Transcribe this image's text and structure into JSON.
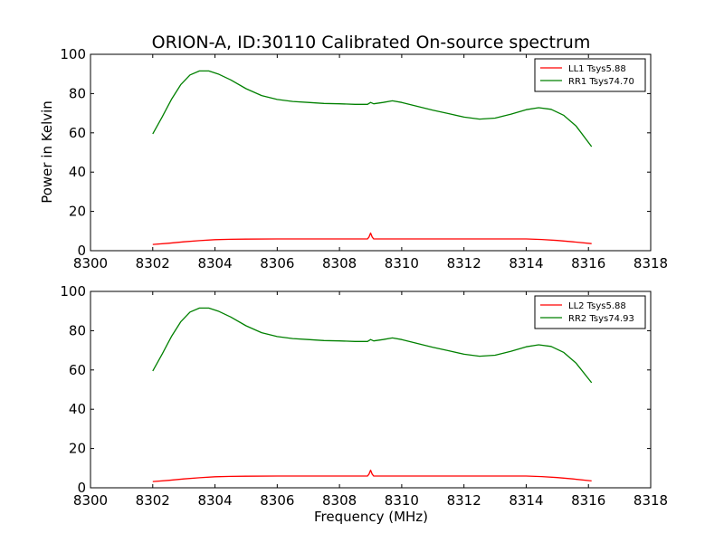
{
  "figure": {
    "title": "ORION-A, ID:30110 Calibrated On-source spectrum",
    "xlabel": "Frequency (MHz)",
    "ylabel": "Power in Kelvin"
  },
  "chart_data": [
    {
      "type": "line",
      "xlabel": "",
      "ylabel": "Power in Kelvin",
      "xlim": [
        8300,
        8318
      ],
      "ylim": [
        0,
        100
      ],
      "x_ticks": [
        8300,
        8302,
        8304,
        8306,
        8308,
        8310,
        8312,
        8314,
        8316,
        8318
      ],
      "y_ticks": [
        0,
        20,
        40,
        60,
        80,
        100
      ],
      "grid": false,
      "legend_position": "top-right",
      "series": [
        {
          "name": "LL1 Tsys5.88",
          "color": "#ff0000",
          "points": [
            [
              8302.0,
              3.2
            ],
            [
              8302.5,
              3.8
            ],
            [
              8303.0,
              4.5
            ],
            [
              8303.5,
              5.1
            ],
            [
              8304.0,
              5.6
            ],
            [
              8304.5,
              5.8
            ],
            [
              8305.0,
              5.9
            ],
            [
              8306.0,
              6.0
            ],
            [
              8307.0,
              6.0
            ],
            [
              8308.0,
              6.0
            ],
            [
              8308.9,
              6.0
            ],
            [
              8308.95,
              7.0
            ],
            [
              8309.0,
              9.0
            ],
            [
              8309.05,
              7.0
            ],
            [
              8309.1,
              6.0
            ],
            [
              8310.0,
              6.0
            ],
            [
              8311.0,
              6.0
            ],
            [
              8312.0,
              6.0
            ],
            [
              8313.0,
              6.0
            ],
            [
              8314.0,
              6.0
            ],
            [
              8314.5,
              5.7
            ],
            [
              8315.0,
              5.2
            ],
            [
              8315.5,
              4.5
            ],
            [
              8316.1,
              3.6
            ]
          ]
        },
        {
          "name": "RR1 Tsys74.70",
          "color": "#008000",
          "points": [
            [
              8302.0,
              59.5
            ],
            [
              8302.3,
              68.0
            ],
            [
              8302.6,
              77.0
            ],
            [
              8302.9,
              84.5
            ],
            [
              8303.2,
              89.5
            ],
            [
              8303.5,
              91.5
            ],
            [
              8303.8,
              91.5
            ],
            [
              8304.1,
              90.0
            ],
            [
              8304.5,
              87.0
            ],
            [
              8305.0,
              82.5
            ],
            [
              8305.5,
              79.0
            ],
            [
              8306.0,
              77.0
            ],
            [
              8306.5,
              76.0
            ],
            [
              8307.0,
              75.5
            ],
            [
              8307.5,
              75.0
            ],
            [
              8308.0,
              74.8
            ],
            [
              8308.5,
              74.5
            ],
            [
              8308.9,
              74.5
            ],
            [
              8309.0,
              75.5
            ],
            [
              8309.1,
              74.8
            ],
            [
              8309.4,
              75.5
            ],
            [
              8309.7,
              76.3
            ],
            [
              8310.0,
              75.5
            ],
            [
              8310.5,
              73.5
            ],
            [
              8311.0,
              71.5
            ],
            [
              8311.5,
              69.8
            ],
            [
              8312.0,
              68.0
            ],
            [
              8312.5,
              67.0
            ],
            [
              8313.0,
              67.5
            ],
            [
              8313.5,
              69.5
            ],
            [
              8314.0,
              71.8
            ],
            [
              8314.4,
              72.8
            ],
            [
              8314.8,
              72.0
            ],
            [
              8315.2,
              69.0
            ],
            [
              8315.6,
              63.5
            ],
            [
              8316.1,
              53.0
            ]
          ]
        }
      ]
    },
    {
      "type": "line",
      "xlabel": "Frequency (MHz)",
      "ylabel": "",
      "xlim": [
        8300,
        8318
      ],
      "ylim": [
        0,
        100
      ],
      "x_ticks": [
        8300,
        8302,
        8304,
        8306,
        8308,
        8310,
        8312,
        8314,
        8316,
        8318
      ],
      "y_ticks": [
        0,
        20,
        40,
        60,
        80,
        100
      ],
      "grid": false,
      "legend_position": "top-right",
      "series": [
        {
          "name": "LL2 Tsys5.88",
          "color": "#ff0000",
          "points": [
            [
              8302.0,
              3.2
            ],
            [
              8302.5,
              3.8
            ],
            [
              8303.0,
              4.5
            ],
            [
              8303.5,
              5.1
            ],
            [
              8304.0,
              5.6
            ],
            [
              8304.5,
              5.8
            ],
            [
              8305.0,
              5.9
            ],
            [
              8306.0,
              6.0
            ],
            [
              8307.0,
              6.0
            ],
            [
              8308.0,
              6.0
            ],
            [
              8308.9,
              6.0
            ],
            [
              8308.95,
              7.0
            ],
            [
              8309.0,
              9.0
            ],
            [
              8309.05,
              7.0
            ],
            [
              8309.1,
              6.0
            ],
            [
              8310.0,
              6.0
            ],
            [
              8311.0,
              6.0
            ],
            [
              8312.0,
              6.0
            ],
            [
              8313.0,
              6.0
            ],
            [
              8314.0,
              6.0
            ],
            [
              8314.5,
              5.7
            ],
            [
              8315.0,
              5.2
            ],
            [
              8315.5,
              4.5
            ],
            [
              8316.1,
              3.5
            ]
          ]
        },
        {
          "name": "RR2 Tsys74.93",
          "color": "#008000",
          "points": [
            [
              8302.0,
              59.5
            ],
            [
              8302.3,
              68.0
            ],
            [
              8302.6,
              77.0
            ],
            [
              8302.9,
              84.5
            ],
            [
              8303.2,
              89.5
            ],
            [
              8303.5,
              91.5
            ],
            [
              8303.8,
              91.5
            ],
            [
              8304.1,
              90.0
            ],
            [
              8304.5,
              87.0
            ],
            [
              8305.0,
              82.5
            ],
            [
              8305.5,
              79.0
            ],
            [
              8306.0,
              77.0
            ],
            [
              8306.5,
              76.0
            ],
            [
              8307.0,
              75.5
            ],
            [
              8307.5,
              75.0
            ],
            [
              8308.0,
              74.8
            ],
            [
              8308.5,
              74.5
            ],
            [
              8308.9,
              74.5
            ],
            [
              8309.0,
              75.5
            ],
            [
              8309.1,
              74.8
            ],
            [
              8309.4,
              75.5
            ],
            [
              8309.7,
              76.3
            ],
            [
              8310.0,
              75.5
            ],
            [
              8310.5,
              73.5
            ],
            [
              8311.0,
              71.5
            ],
            [
              8311.5,
              69.8
            ],
            [
              8312.0,
              68.0
            ],
            [
              8312.5,
              67.0
            ],
            [
              8313.0,
              67.5
            ],
            [
              8313.5,
              69.5
            ],
            [
              8314.0,
              71.8
            ],
            [
              8314.4,
              72.8
            ],
            [
              8314.8,
              72.0
            ],
            [
              8315.2,
              69.0
            ],
            [
              8315.6,
              63.5
            ],
            [
              8316.1,
              53.5
            ]
          ]
        }
      ]
    }
  ]
}
